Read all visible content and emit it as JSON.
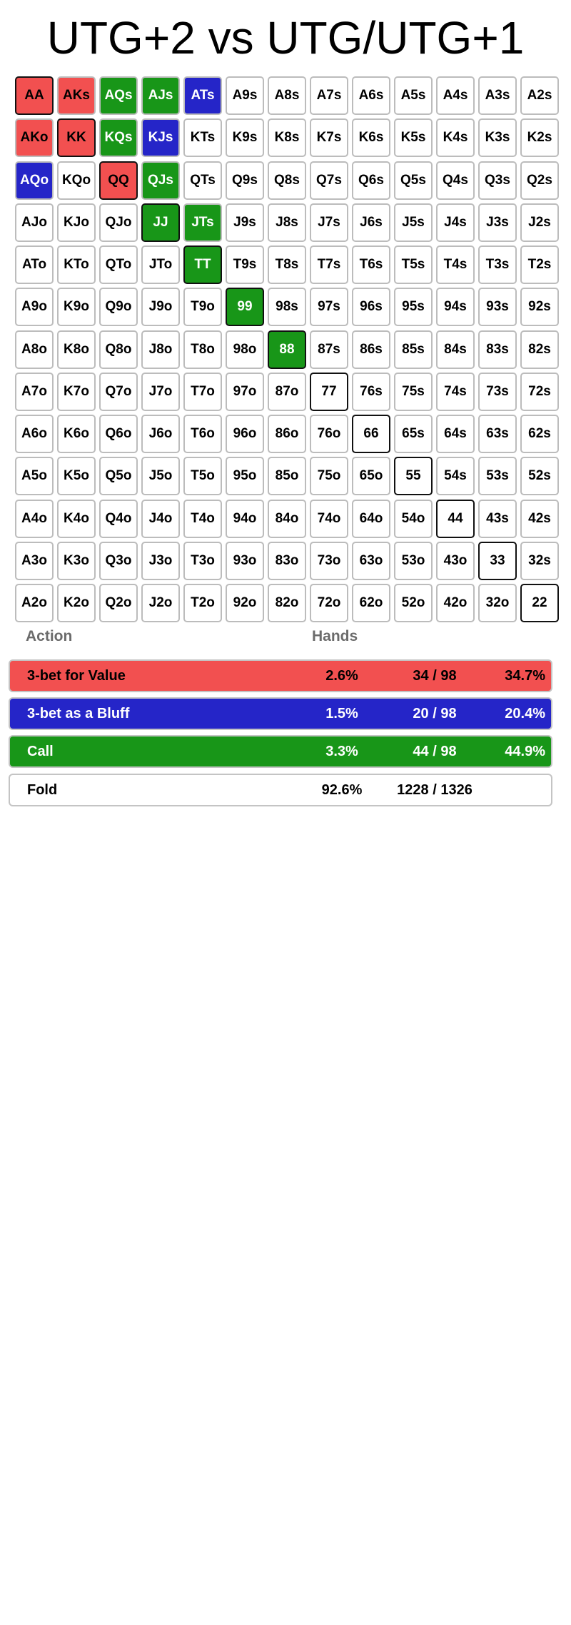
{
  "title": "UTG+2 vs UTG/UTG+1",
  "colors": {
    "value": "#f25050",
    "bluff": "#2525c8",
    "call": "#189618",
    "fold": "#ffffff"
  },
  "grid": {
    "rows": [
      [
        "AA",
        "AKs",
        "AQs",
        "AJs",
        "ATs",
        "A9s",
        "A8s",
        "A7s",
        "A6s",
        "A5s",
        "A4s",
        "A3s",
        "A2s"
      ],
      [
        "AKo",
        "KK",
        "KQs",
        "KJs",
        "KTs",
        "K9s",
        "K8s",
        "K7s",
        "K6s",
        "K5s",
        "K4s",
        "K3s",
        "K2s"
      ],
      [
        "AQo",
        "KQo",
        "QQ",
        "QJs",
        "QTs",
        "Q9s",
        "Q8s",
        "Q7s",
        "Q6s",
        "Q5s",
        "Q4s",
        "Q3s",
        "Q2s"
      ],
      [
        "AJo",
        "KJo",
        "QJo",
        "JJ",
        "JTs",
        "J9s",
        "J8s",
        "J7s",
        "J6s",
        "J5s",
        "J4s",
        "J3s",
        "J2s"
      ],
      [
        "ATo",
        "KTo",
        "QTo",
        "JTo",
        "TT",
        "T9s",
        "T8s",
        "T7s",
        "T6s",
        "T5s",
        "T4s",
        "T3s",
        "T2s"
      ],
      [
        "A9o",
        "K9o",
        "Q9o",
        "J9o",
        "T9o",
        "99",
        "98s",
        "97s",
        "96s",
        "95s",
        "94s",
        "93s",
        "92s"
      ],
      [
        "A8o",
        "K8o",
        "Q8o",
        "J8o",
        "T8o",
        "98o",
        "88",
        "87s",
        "86s",
        "85s",
        "84s",
        "83s",
        "82s"
      ],
      [
        "A7o",
        "K7o",
        "Q7o",
        "J7o",
        "T7o",
        "97o",
        "87o",
        "77",
        "76s",
        "75s",
        "74s",
        "73s",
        "72s"
      ],
      [
        "A6o",
        "K6o",
        "Q6o",
        "J6o",
        "T6o",
        "96o",
        "86o",
        "76o",
        "66",
        "65s",
        "64s",
        "63s",
        "62s"
      ],
      [
        "A5o",
        "K5o",
        "Q5o",
        "J5o",
        "T5o",
        "95o",
        "85o",
        "75o",
        "65o",
        "55",
        "54s",
        "53s",
        "52s"
      ],
      [
        "A4o",
        "K4o",
        "Q4o",
        "J4o",
        "T4o",
        "94o",
        "84o",
        "74o",
        "64o",
        "54o",
        "44",
        "43s",
        "42s"
      ],
      [
        "A3o",
        "K3o",
        "Q3o",
        "J3o",
        "T3o",
        "93o",
        "83o",
        "73o",
        "63o",
        "53o",
        "43o",
        "33",
        "32s"
      ],
      [
        "A2o",
        "K2o",
        "Q2o",
        "J2o",
        "T2o",
        "92o",
        "82o",
        "72o",
        "62o",
        "52o",
        "42o",
        "32o",
        "22"
      ]
    ],
    "actions": {
      "AA": "value",
      "AKs": "value",
      "AKo": "value",
      "KK": "value",
      "QQ": "value",
      "ATs": "bluff",
      "KJs": "bluff",
      "AQo": "bluff",
      "AQs": "call",
      "AJs": "call",
      "KQs": "call",
      "QJs": "call",
      "JJ": "call",
      "JTs": "call",
      "TT": "call",
      "99": "call",
      "88": "call"
    }
  },
  "legend": {
    "header_action": "Action",
    "header_hands": "Hands",
    "rows": [
      {
        "key": "value",
        "label": "3-bet for Value",
        "pct": "2.6%",
        "count": "34 / 98",
        "share": "34.7%"
      },
      {
        "key": "bluff",
        "label": "3-bet as a Bluff",
        "pct": "1.5%",
        "count": "20 / 98",
        "share": "20.4%"
      },
      {
        "key": "call",
        "label": "Call",
        "pct": "3.3%",
        "count": "44 / 98",
        "share": "44.9%"
      },
      {
        "key": "fold",
        "label": "Fold",
        "pct": "92.6%",
        "count": "1228 / 1326",
        "share": ""
      }
    ]
  }
}
